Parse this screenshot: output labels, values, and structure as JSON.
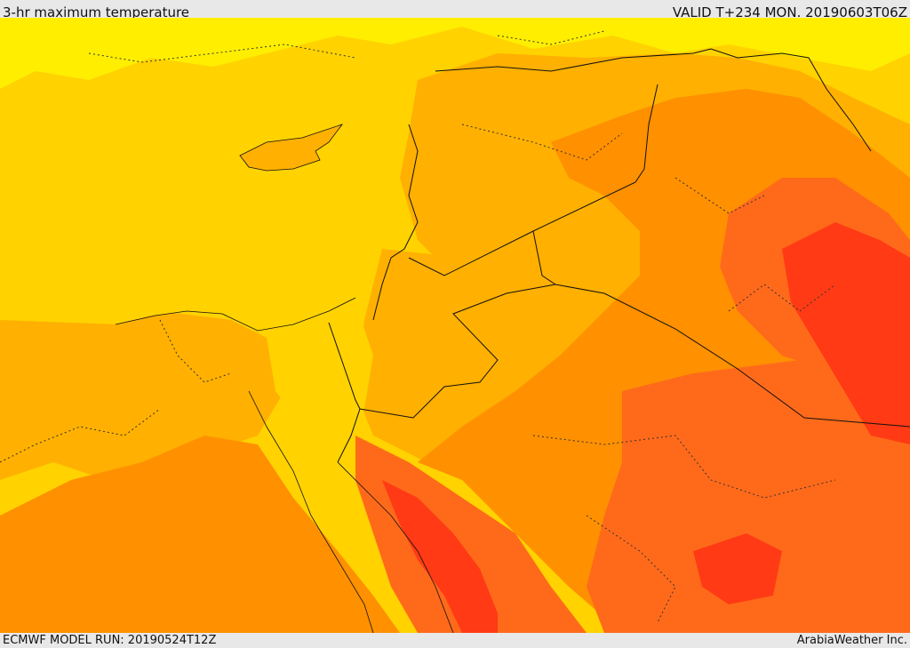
{
  "header": {
    "title": "3-hr maximum temperature",
    "valid": "VALID T+234 MON. 20190603T06Z"
  },
  "footer": {
    "model_run": "ECMWF MODEL RUN: 20190524T12Z",
    "credit": "ArabiaWeather Inc."
  },
  "map": {
    "palette": {
      "cool": "#ffee00",
      "mild": "#ffd200",
      "warm": "#ffb000",
      "hot": "#ff9000",
      "very_hot": "#ff6a1a",
      "extreme": "#ff3a14",
      "border": "#111111"
    }
  }
}
